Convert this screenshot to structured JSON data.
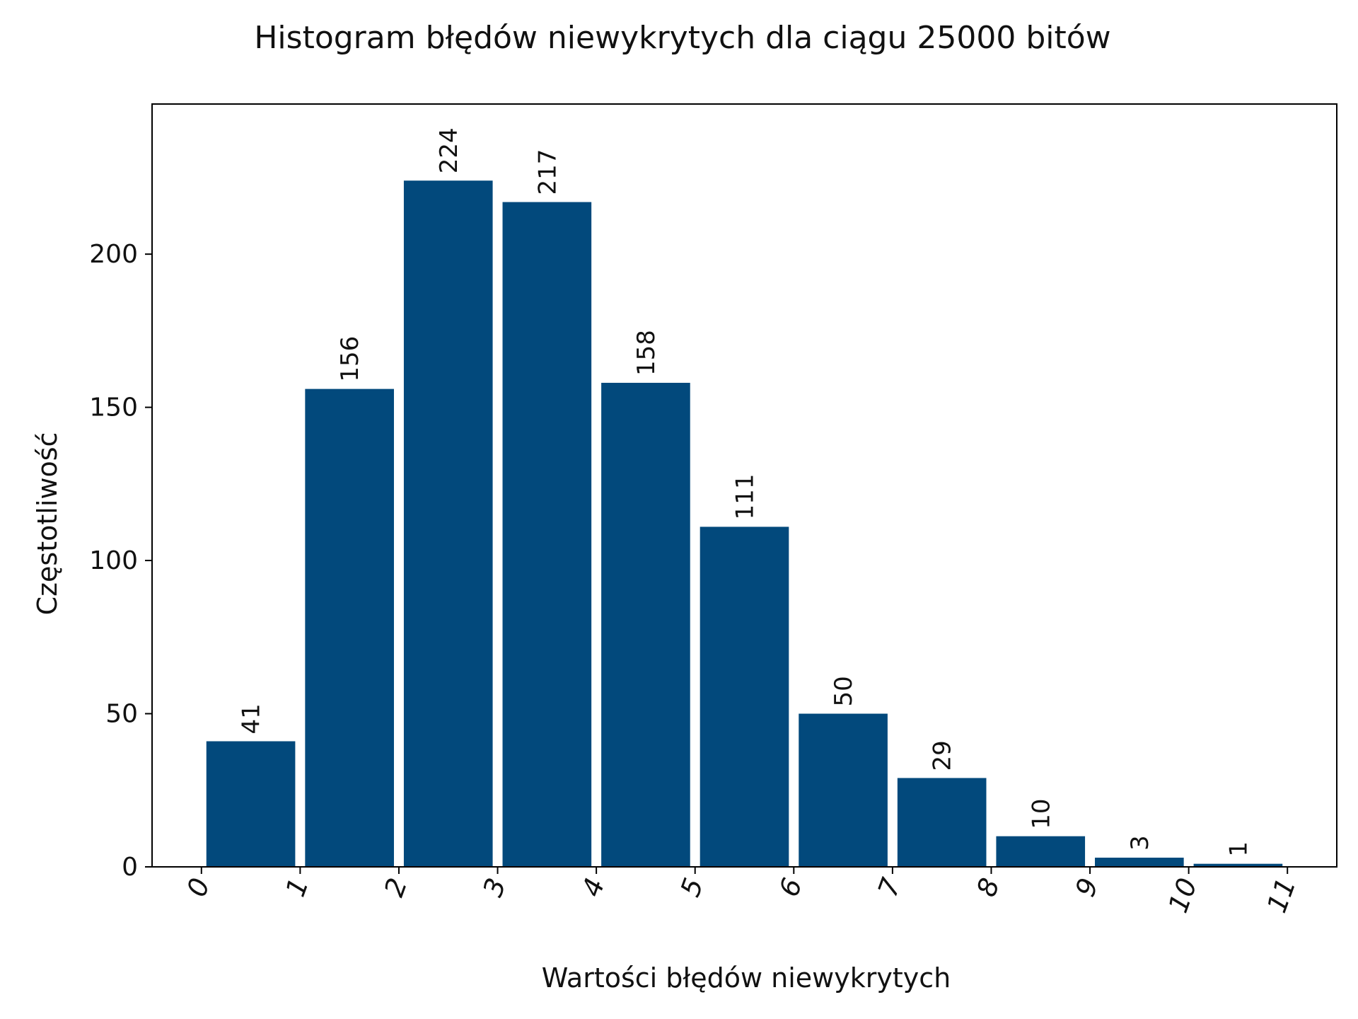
{
  "chart_data": {
    "type": "bar",
    "title": "Histogram błędów niewykrytych dla ciągu 25000 bitów",
    "xlabel": "Wartości błędów niewykrytych",
    "ylabel": "Częstotliwość",
    "bins": [
      {
        "from": 0,
        "to": 1,
        "value": 41
      },
      {
        "from": 1,
        "to": 2,
        "value": 156
      },
      {
        "from": 2,
        "to": 3,
        "value": 224
      },
      {
        "from": 3,
        "to": 4,
        "value": 217
      },
      {
        "from": 4,
        "to": 5,
        "value": 158
      },
      {
        "from": 5,
        "to": 6,
        "value": 111
      },
      {
        "from": 6,
        "to": 7,
        "value": 50
      },
      {
        "from": 7,
        "to": 8,
        "value": 29
      },
      {
        "from": 8,
        "to": 9,
        "value": 10
      },
      {
        "from": 9,
        "to": 10,
        "value": 3
      },
      {
        "from": 10,
        "to": 11,
        "value": 1
      }
    ],
    "xticks": [
      "0",
      "1",
      "2",
      "3",
      "4",
      "5",
      "6",
      "7",
      "8",
      "9",
      "10",
      "11"
    ],
    "yticks": [
      "0",
      "50",
      "100",
      "150",
      "200"
    ],
    "xlim": [
      -0.5,
      11.5
    ],
    "ylim": [
      0,
      249
    ],
    "bar_color": "#02497c",
    "grid": false,
    "legend": false
  }
}
